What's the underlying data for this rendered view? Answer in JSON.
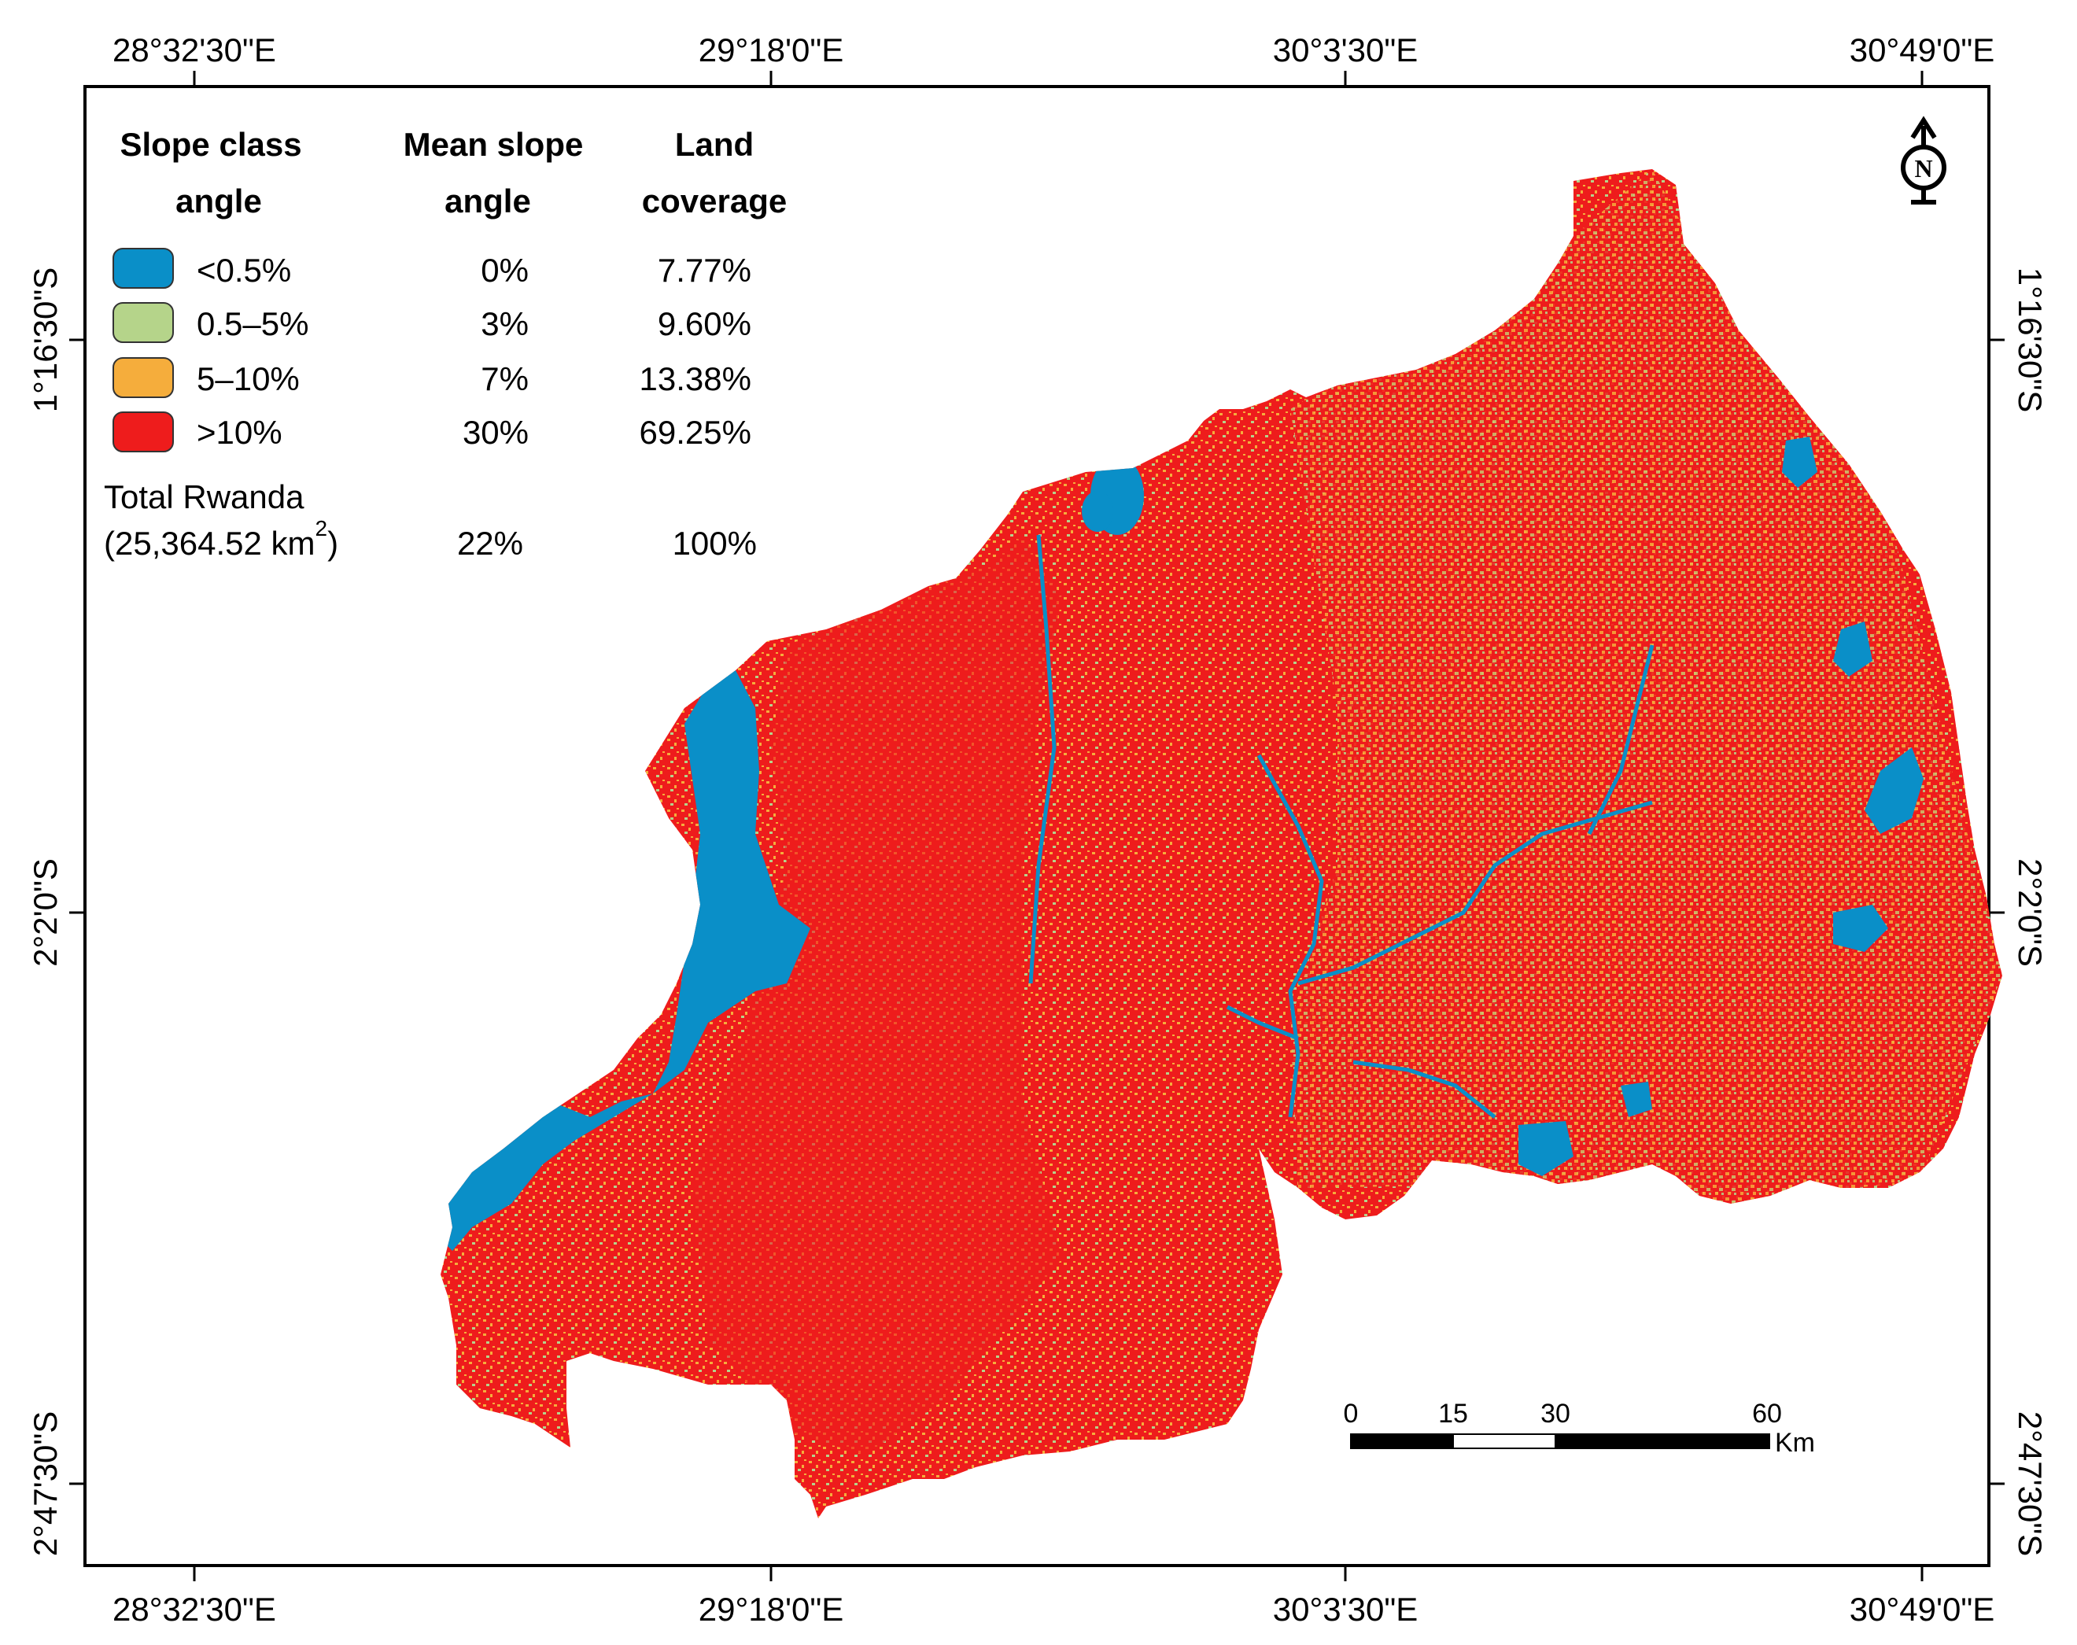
{
  "graticule": {
    "top_labels": [
      "28°32'30\"E",
      "29°18'0\"E",
      "30°3'30\"E",
      "30°49'0\"E"
    ],
    "bottom_labels": [
      "28°32'30\"E",
      "29°18'0\"E",
      "30°3'30\"E",
      "30°49'0\"E"
    ],
    "left_labels": [
      "1°16'30\"S",
      "2°2'0\"S",
      "2°47'30\"S"
    ],
    "right_labels": [
      "1°16'30\"S",
      "2°2'0\"S",
      "2°47'30\"S"
    ]
  },
  "legend": {
    "headers": {
      "slope_class_1": "Slope class",
      "slope_class_2": "angle",
      "mean_slope_1": "Mean slope",
      "mean_slope_2": "angle",
      "land_1": "Land",
      "land_2": "coverage"
    },
    "rows": [
      {
        "label": "<0.5%",
        "mean": "0%",
        "coverage": "7.77%",
        "color": "#0a8fc8"
      },
      {
        "label": "0.5–5%",
        "mean": "3%",
        "coverage": "9.60%",
        "color": "#b5d48a"
      },
      {
        "label": "5–10%",
        "mean": "7%",
        "coverage": "13.38%",
        "color": "#f5ad3c"
      },
      {
        "label": ">10%",
        "mean": "30%",
        "coverage": "69.25%",
        "color": "#ee1c1c"
      }
    ],
    "total": {
      "label_line1": "Total Rwanda",
      "label_line2": "(25,364.52 km",
      "label_sup": "2",
      "label_close": ")",
      "mean": "22%",
      "coverage": "100%"
    }
  },
  "scale_bar": {
    "ticks": [
      "0",
      "15",
      "30",
      "60"
    ],
    "unit": "Km"
  },
  "north_arrow": {
    "letter": "N"
  }
}
